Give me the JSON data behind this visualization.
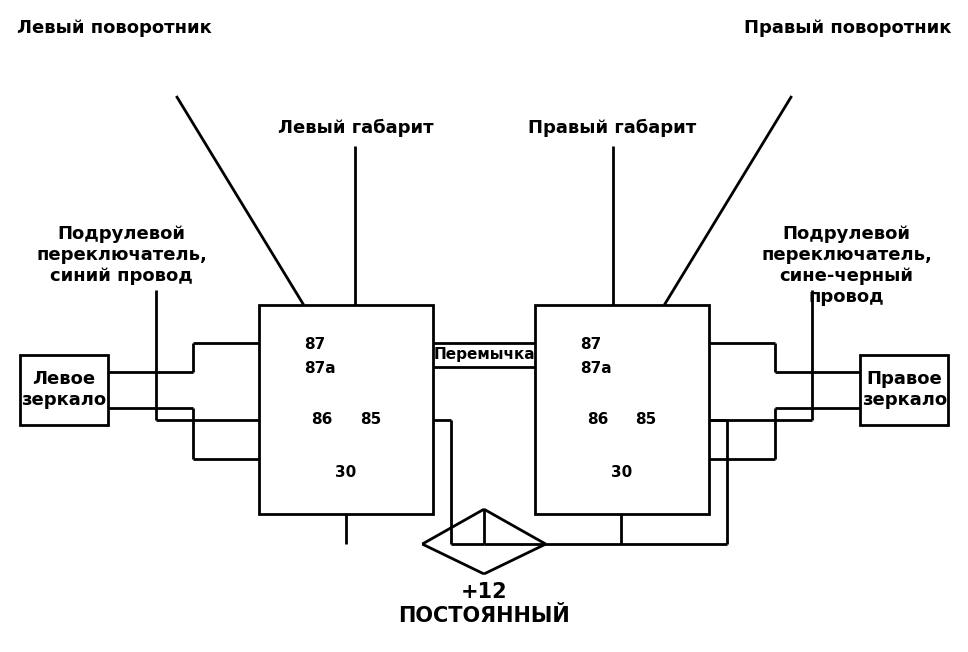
{
  "bg_color": "#ffffff",
  "lw": 2.0,
  "fs_main": 11,
  "fs_large": 13,
  "labels": {
    "left_turn": "Левый поворотник",
    "right_turn": "Правый поворотник",
    "left_dim": "Левый габарит",
    "right_dim": "Правый габарит",
    "left_switch": "Подрулевой\nпереключатель,\nсиний провод",
    "right_switch": "Подрулевой\nпереключатель,\nсине-черный\nпровод",
    "left_mirror": "Левое\nзеркало",
    "right_mirror": "Правое\nзеркало",
    "jumper": "Перемычка",
    "plus12": "+12",
    "constant": "ПОСТОЯННЫЙ"
  }
}
